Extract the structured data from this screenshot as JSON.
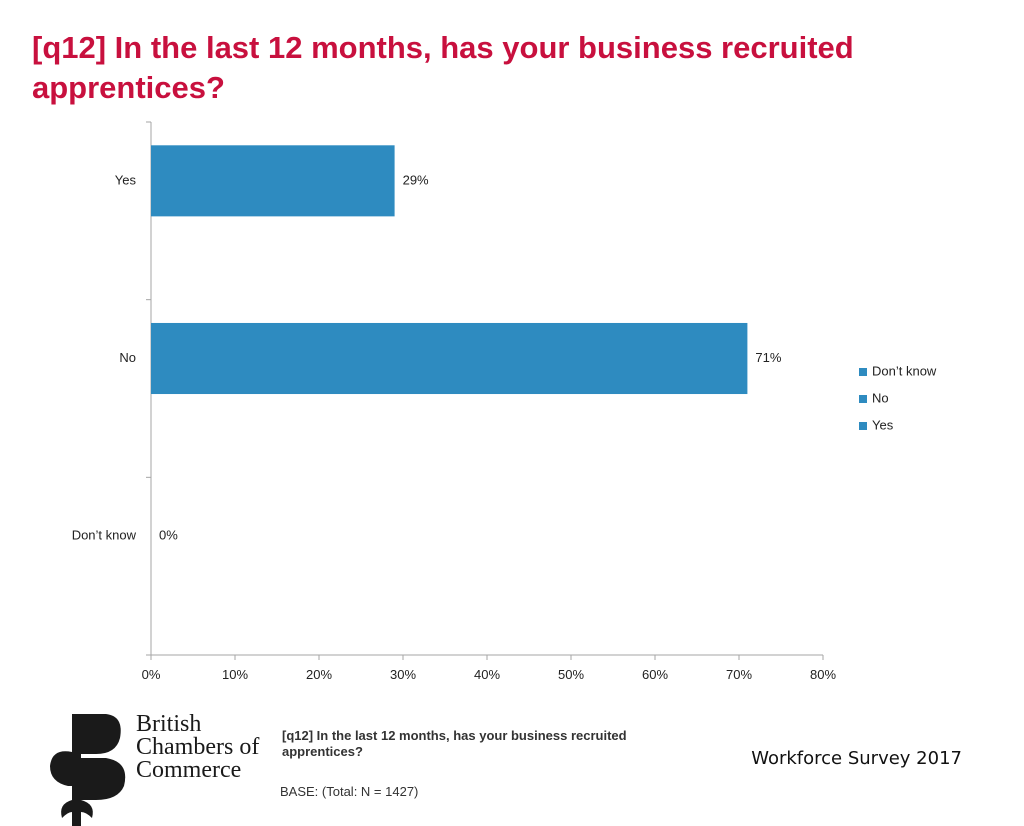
{
  "title": "[q12] In the last 12 months, has your business recruited apprentices?",
  "chart_data": {
    "type": "bar",
    "orientation": "horizontal",
    "categories": [
      "Yes",
      "No",
      "Don’t know"
    ],
    "values": [
      29,
      71,
      0
    ],
    "data_labels": [
      "29%",
      "71%",
      "0%"
    ],
    "xlim": [
      0,
      80
    ],
    "xticks": [
      0,
      10,
      20,
      30,
      40,
      50,
      60,
      70,
      80
    ],
    "xtick_labels": [
      "0%",
      "10%",
      "20%",
      "30%",
      "40%",
      "50%",
      "60%",
      "70%",
      "80%"
    ],
    "grid": false,
    "legend": {
      "placement": "right",
      "entries": [
        "Don’t know",
        "No",
        "Yes"
      ]
    },
    "bar_color": "#2e8bc0"
  },
  "logo": {
    "text_lines": [
      "British",
      "Chambers of",
      "Commerce"
    ],
    "color": "#1a1a1a"
  },
  "footer": {
    "question": "[q12] In the last 12 months, has your business recruited apprentices?",
    "base": "BASE: (Total: N = 1427)",
    "survey_name": "Workforce Survey 2017"
  }
}
